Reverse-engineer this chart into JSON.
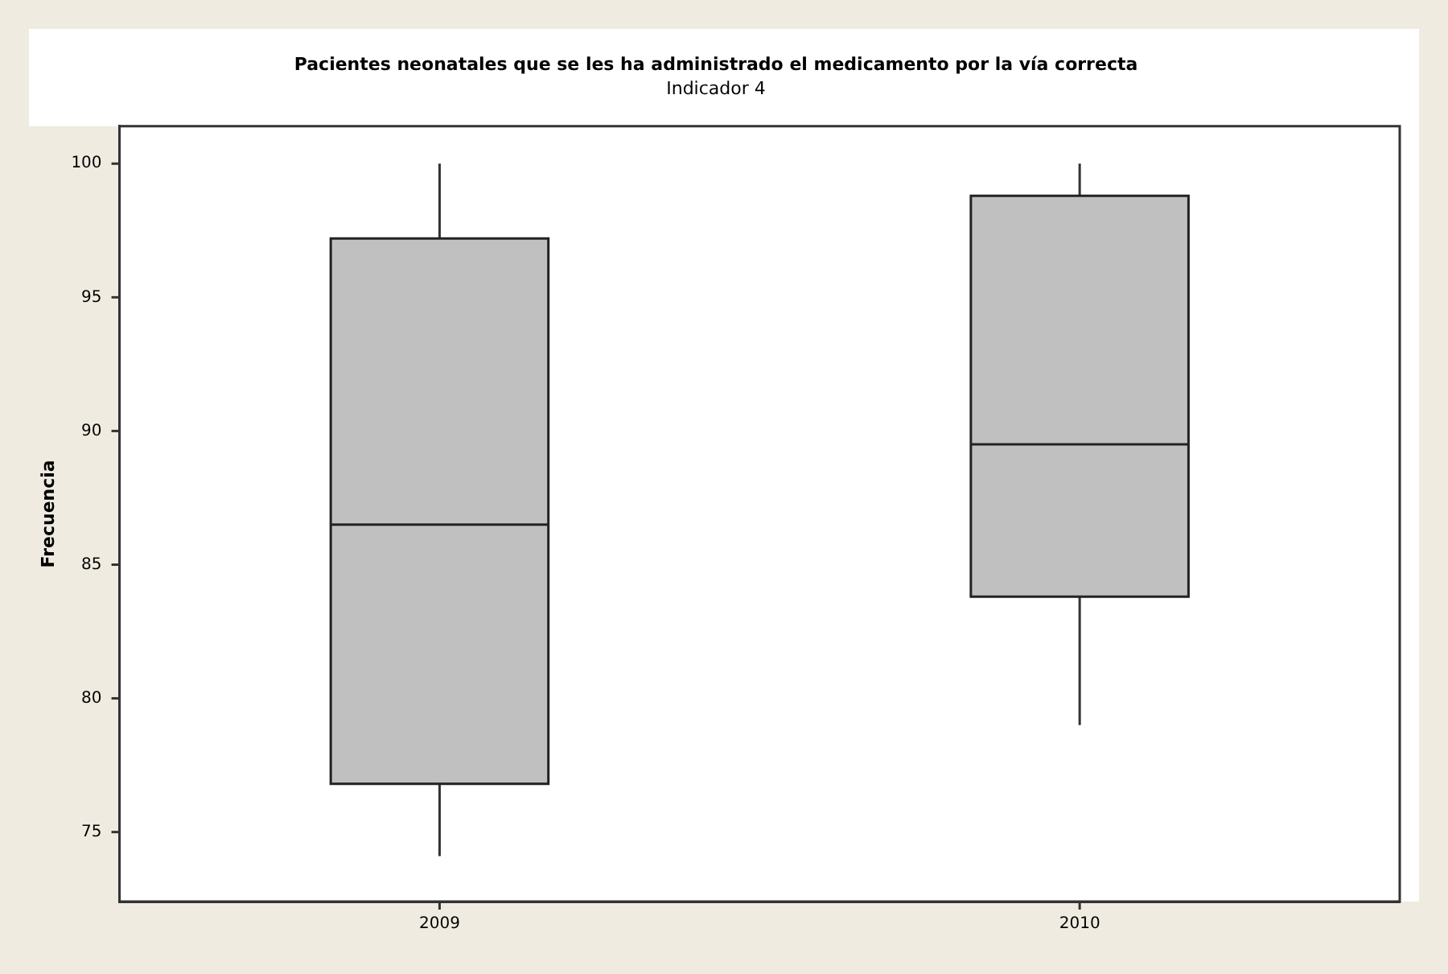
{
  "chart_data": {
    "type": "box",
    "title": "Pacientes neonatales que se les ha administrado el medicamento por la vía correcta",
    "subtitle": "Indicador 4",
    "ylabel": "Frecuencia",
    "categories": [
      "2009",
      "2010"
    ],
    "boxes": [
      {
        "low": 74.1,
        "q1": 76.8,
        "median": 86.5,
        "q3": 97.2,
        "high": 100
      },
      {
        "low": 79.0,
        "q1": 83.8,
        "median": 89.5,
        "q3": 98.8,
        "high": 100
      }
    ],
    "color": "#c0c0c0",
    "ylim": [
      72.4,
      101.4
    ],
    "yticks": [
      75,
      80,
      85,
      90,
      95,
      100
    ],
    "grid": false,
    "legend": false
  }
}
